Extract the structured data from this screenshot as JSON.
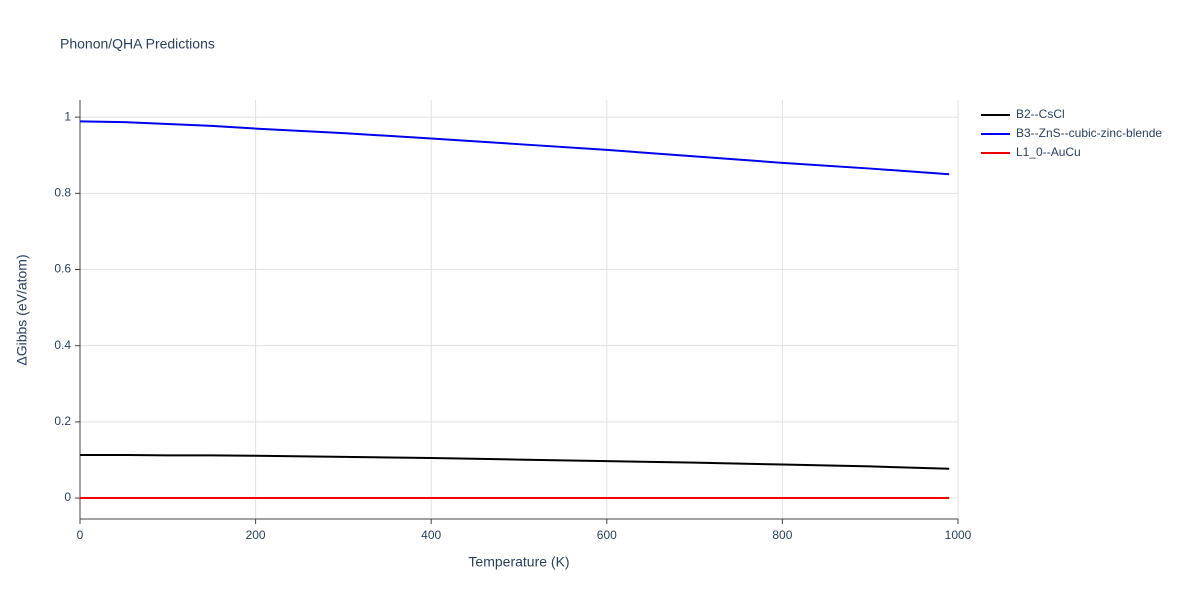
{
  "chart_data": {
    "type": "line",
    "title": "Phonon/QHA Predictions",
    "xlabel": "Temperature (K)",
    "ylabel": "ΔGibbs (eV/atom)",
    "x": [
      0,
      50,
      100,
      150,
      200,
      300,
      400,
      500,
      600,
      700,
      800,
      900,
      990
    ],
    "series": [
      {
        "name": "B2--CsCl",
        "color": "#000000",
        "values": [
          0.113,
          0.113,
          0.112,
          0.112,
          0.111,
          0.108,
          0.105,
          0.101,
          0.097,
          0.093,
          0.088,
          0.083,
          0.077
        ]
      },
      {
        "name": "B3--ZnS--cubic-zinc-blende",
        "color": "#0000ee",
        "values": [
          0.989,
          0.987,
          0.982,
          0.977,
          0.97,
          0.958,
          0.944,
          0.929,
          0.914,
          0.897,
          0.88,
          0.865,
          0.85
        ]
      },
      {
        "name": "L1_0--AuCu",
        "color": "#ee0000",
        "values": [
          0,
          0,
          0,
          0,
          0,
          0,
          0,
          0,
          0,
          0,
          0,
          0,
          0
        ]
      }
    ],
    "xlim": [
      0,
      1000
    ],
    "xticks": [
      0,
      200,
      400,
      600,
      800,
      1000
    ],
    "ylim": [
      -0.055,
      1.045
    ],
    "yticks": [
      0,
      0.2,
      0.4,
      0.6,
      0.8,
      1
    ],
    "grid": true,
    "legend": "right"
  }
}
